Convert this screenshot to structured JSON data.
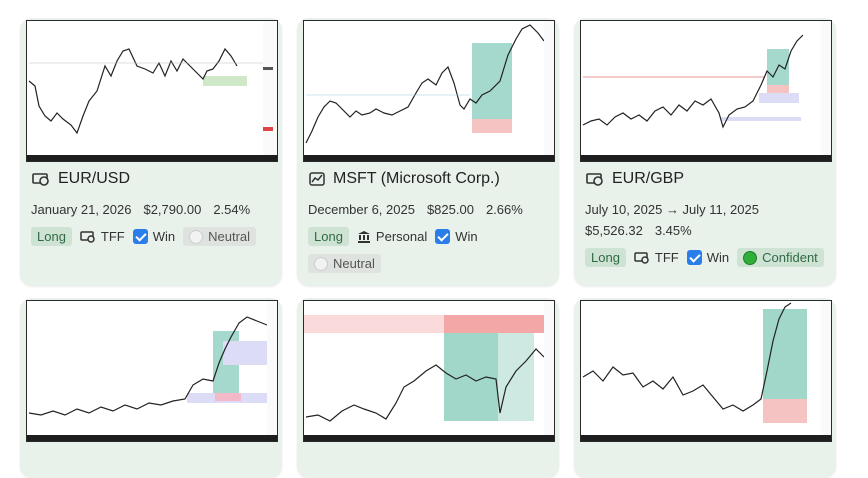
{
  "cards": [
    {
      "title": "EUR/USD",
      "details": [
        "January 21, 2026",
        "$2,790.00",
        "2.54%"
      ],
      "tags": [
        "Long",
        "TFF",
        "Win",
        "Neutral"
      ]
    },
    {
      "title": "MSFT (Microsoft Corp.)",
      "details": [
        "December 6, 2025",
        "$825.00",
        "2.66%"
      ],
      "tags": [
        "Long",
        "Personal",
        "Win",
        "Neutral"
      ]
    },
    {
      "title": "EUR/GBP",
      "details": [
        "July 10, 2025 → July 11, 2025",
        "$5,526.32",
        "3.45%"
      ],
      "tags": [
        "Long",
        "TFF",
        "Win",
        "Confident"
      ]
    }
  ]
}
